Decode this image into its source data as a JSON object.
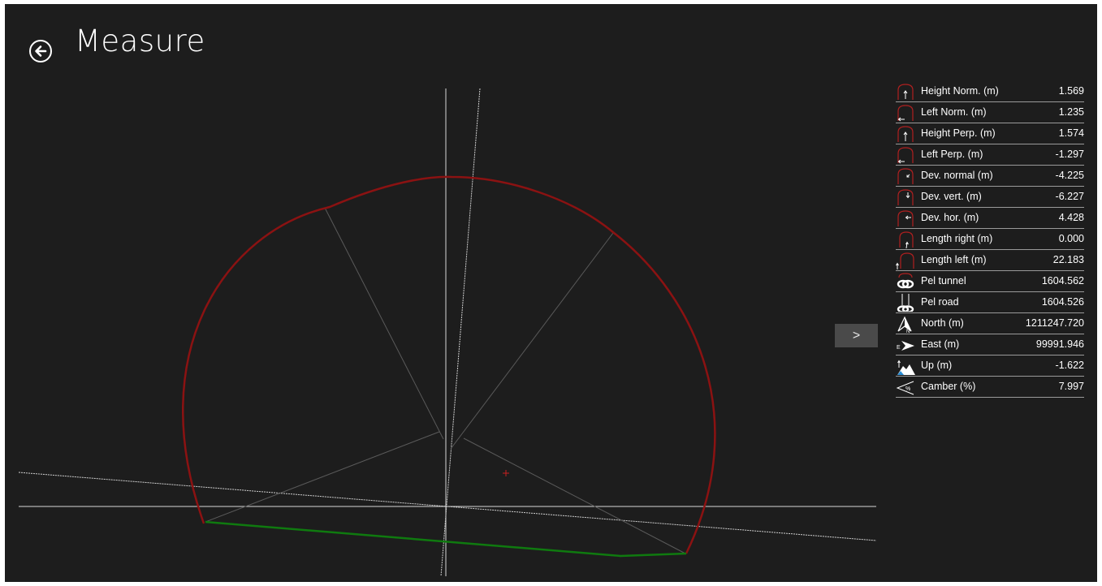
{
  "header": {
    "title": "Measure"
  },
  "nav": {
    "next_label": ">"
  },
  "colors": {
    "profile": "#8b1212",
    "road": "#0f7a0f",
    "axis": "#e8e8e8",
    "spoke": "#5a5a5a",
    "background": "#1d1d1d"
  },
  "metrics": [
    {
      "label": "Height Norm. (m)",
      "value": "1.569",
      "icon": "height-normal-icon"
    },
    {
      "label": "Left Norm. (m)",
      "value": "1.235",
      "icon": "left-normal-icon"
    },
    {
      "label": "Height Perp. (m)",
      "value": "1.574",
      "icon": "height-perp-icon"
    },
    {
      "label": "Left Perp. (m)",
      "value": "-1.297",
      "icon": "left-perp-icon"
    },
    {
      "label": "Dev. normal (m)",
      "value": "-4.225",
      "icon": "dev-normal-icon"
    },
    {
      "label": "Dev. vert. (m)",
      "value": "-6.227",
      "icon": "dev-vertical-icon"
    },
    {
      "label": "Dev. hor. (m)",
      "value": "4.428",
      "icon": "dev-horizontal-icon"
    },
    {
      "label": "Length right (m)",
      "value": "0.000",
      "icon": "length-right-icon"
    },
    {
      "label": "Length left (m)",
      "value": "22.183",
      "icon": "length-left-icon"
    },
    {
      "label": "Pel tunnel",
      "value": "1604.562",
      "icon": "chain-icon"
    },
    {
      "label": "Pel road",
      "value": "1604.526",
      "icon": "chain-road-icon"
    },
    {
      "label": "North (m)",
      "value": "1211247.720",
      "icon": "north-arrow-icon"
    },
    {
      "label": "East (m)",
      "value": "99991.946",
      "icon": "east-arrow-icon"
    },
    {
      "label": "Up (m)",
      "value": "-1.622",
      "icon": "up-terrain-icon"
    },
    {
      "label": "Camber (%)",
      "value": "7.997",
      "icon": "camber-icon"
    }
  ]
}
